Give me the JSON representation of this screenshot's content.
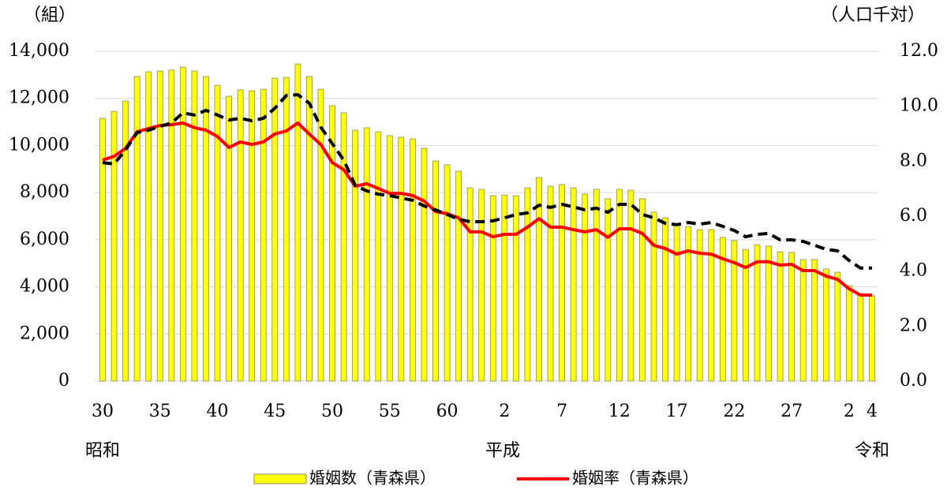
{
  "chart_data": {
    "type": "bar_line",
    "y_unit": "（組）",
    "y2_unit": "（人口千対）",
    "eras": [
      "昭和",
      "平成",
      "令和"
    ],
    "categories": [
      "30",
      null,
      null,
      null,
      null,
      "35",
      null,
      null,
      null,
      null,
      "40",
      null,
      null,
      null,
      null,
      "45",
      null,
      null,
      null,
      null,
      "50",
      null,
      null,
      null,
      null,
      "55",
      null,
      null,
      null,
      null,
      "60",
      null,
      null,
      null,
      null,
      "2",
      null,
      null,
      null,
      null,
      "7",
      null,
      null,
      null,
      null,
      "12",
      null,
      null,
      null,
      null,
      "17",
      null,
      null,
      null,
      null,
      "22",
      null,
      null,
      null,
      null,
      "27",
      null,
      null,
      null,
      null,
      "2",
      null,
      "4"
    ],
    "ylim": [
      0,
      14000
    ],
    "yticks": [
      0,
      {
        "value": 2000,
        "label": "2,000"
      },
      {
        "value": 4000,
        "label": "4,000"
      },
      {
        "value": 6000,
        "label": "6,000"
      },
      {
        "value": 8000,
        "label": "8,000"
      },
      {
        "value": 10000,
        "label": "10,000"
      },
      {
        "value": 12000,
        "label": "12,000"
      },
      {
        "value": 14000,
        "label": "14,000"
      }
    ],
    "y2lim": [
      0,
      12
    ],
    "y2ticks": [
      {
        "value": 0,
        "label": "0.0"
      },
      {
        "value": 2,
        "label": "2.0"
      },
      {
        "value": 4,
        "label": "4.0"
      },
      {
        "value": 6,
        "label": "6.0"
      },
      {
        "value": 8,
        "label": "8.0"
      },
      {
        "value": 10,
        "label": "10.0"
      },
      {
        "value": 12,
        "label": "12.0"
      }
    ],
    "grid": true,
    "series": [
      {
        "name": "婚姻数（青森県）",
        "kind": "bar",
        "color": "#ffff00",
        "values": [
          11150,
          11450,
          11890,
          12930,
          13130,
          13160,
          13200,
          13330,
          13160,
          12930,
          12560,
          12090,
          12360,
          12320,
          12390,
          12860,
          12890,
          13460,
          12930,
          12390,
          11690,
          11390,
          10650,
          10750,
          10580,
          10420,
          10350,
          10280,
          9880,
          9340,
          9180,
          8910,
          8200,
          8140,
          7870,
          7900,
          7870,
          8200,
          8640,
          8270,
          8340,
          8200,
          7940,
          8140,
          7740,
          8140,
          8100,
          7740,
          7170,
          6930,
          6630,
          6560,
          6430,
          6430,
          6100,
          5960,
          5590,
          5790,
          5730,
          5490,
          5460,
          5160,
          5160,
          4760,
          4620,
          4050,
          3720,
          3620
        ]
      },
      {
        "name": "婚姻率（青森県）",
        "kind": "line",
        "axis": "y2",
        "color": "#ff0000",
        "values": [
          8.04,
          8.18,
          8.47,
          9.07,
          9.19,
          9.3,
          9.33,
          9.39,
          9.22,
          9.13,
          8.9,
          8.5,
          8.7,
          8.61,
          8.7,
          8.99,
          9.1,
          9.39,
          8.99,
          8.61,
          7.95,
          7.69,
          7.09,
          7.18,
          7.01,
          6.83,
          6.83,
          6.75,
          6.55,
          6.17,
          6.09,
          5.94,
          5.43,
          5.43,
          5.25,
          5.34,
          5.34,
          5.6,
          5.91,
          5.6,
          5.6,
          5.51,
          5.43,
          5.51,
          5.23,
          5.54,
          5.54,
          5.37,
          4.94,
          4.82,
          4.62,
          4.74,
          4.65,
          4.62,
          4.45,
          4.31,
          4.13,
          4.34,
          4.34,
          4.22,
          4.25,
          4.02,
          4.02,
          3.82,
          3.7,
          3.36,
          3.13,
          3.13
        ]
      },
      {
        "kind": "line",
        "axis": "y2",
        "dashed": true,
        "color": "#000000",
        "values": [
          7.95,
          7.9,
          8.41,
          9.04,
          9.13,
          9.27,
          9.39,
          9.76,
          9.68,
          9.85,
          9.68,
          9.5,
          9.56,
          9.47,
          9.56,
          9.93,
          10.39,
          10.42,
          10.11,
          9.24,
          8.64,
          8.04,
          7.12,
          6.92,
          6.8,
          6.75,
          6.66,
          6.58,
          6.37,
          6.23,
          6.06,
          5.89,
          5.8,
          5.8,
          5.83,
          5.94,
          6.06,
          6.12,
          6.4,
          6.32,
          6.43,
          6.34,
          6.23,
          6.29,
          6.14,
          6.43,
          6.43,
          6.06,
          5.94,
          5.74,
          5.69,
          5.77,
          5.71,
          5.77,
          5.63,
          5.48,
          5.25,
          5.34,
          5.37,
          5.14,
          5.14,
          5.08,
          4.94,
          4.79,
          4.74,
          4.39,
          4.11,
          4.11
        ]
      }
    ]
  }
}
